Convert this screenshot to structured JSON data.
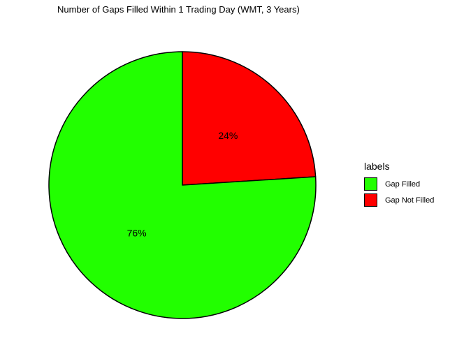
{
  "chart_data": {
    "type": "pie",
    "title": "Number of Gaps Filled Within 1 Trading Day (WMT, 3 Years)",
    "legend_title": "labels",
    "legend_position": "right",
    "slices": [
      {
        "label": "Gap Not Filled",
        "value": 24,
        "display": "24%",
        "color": "#ff0000"
      },
      {
        "label": "Gap Filled",
        "value": 76,
        "display": "76%",
        "color": "#22ff00"
      }
    ],
    "legend_order": [
      "Gap Filled",
      "Gap Not Filled"
    ]
  }
}
